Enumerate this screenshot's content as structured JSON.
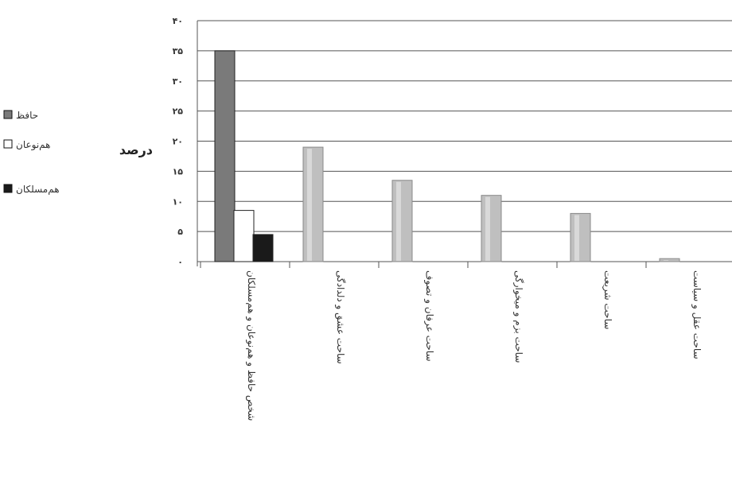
{
  "chart_data": {
    "type": "bar",
    "categories": [
      "شخص حافظ و هم‌نوعان و هم‌مسلکان",
      "ساحت عشق و دلدادگی",
      "ساحت عرفان و تصوف",
      "ساحت بزم و میخوارگی",
      "ساحت شریعت",
      "ساحت عقل و سیاست"
    ],
    "series": [
      {
        "name": "حافظ",
        "color": "#7a7a7a",
        "values": [
          35,
          19,
          13.5,
          11,
          8,
          0.5
        ]
      },
      {
        "name": "هم‌نوعان",
        "color": "#ffffff",
        "values": [
          8.5,
          0,
          0,
          0,
          0,
          0
        ]
      },
      {
        "name": "هم‌مسلکان",
        "color": "#1a1a1a",
        "values": [
          4.5,
          0,
          0,
          0,
          0,
          0
        ]
      }
    ],
    "first_category_colors": [
      "#7a7a7a",
      "#ffffff",
      "#1a1a1a"
    ],
    "other_category_color": "#bfbfbf",
    "ylabel": "درصد",
    "xlabel": "",
    "ylim": [
      0,
      40
    ],
    "yticks": [
      0,
      5,
      10,
      15,
      20,
      25,
      30,
      35,
      40
    ],
    "ytick_labels": [
      "۰",
      "۵",
      "۱۰",
      "۱۵",
      "۲۰",
      "۲۵",
      "۳۰",
      "۳۵",
      "۴۰"
    ],
    "grid": true,
    "legend_position": "left"
  }
}
